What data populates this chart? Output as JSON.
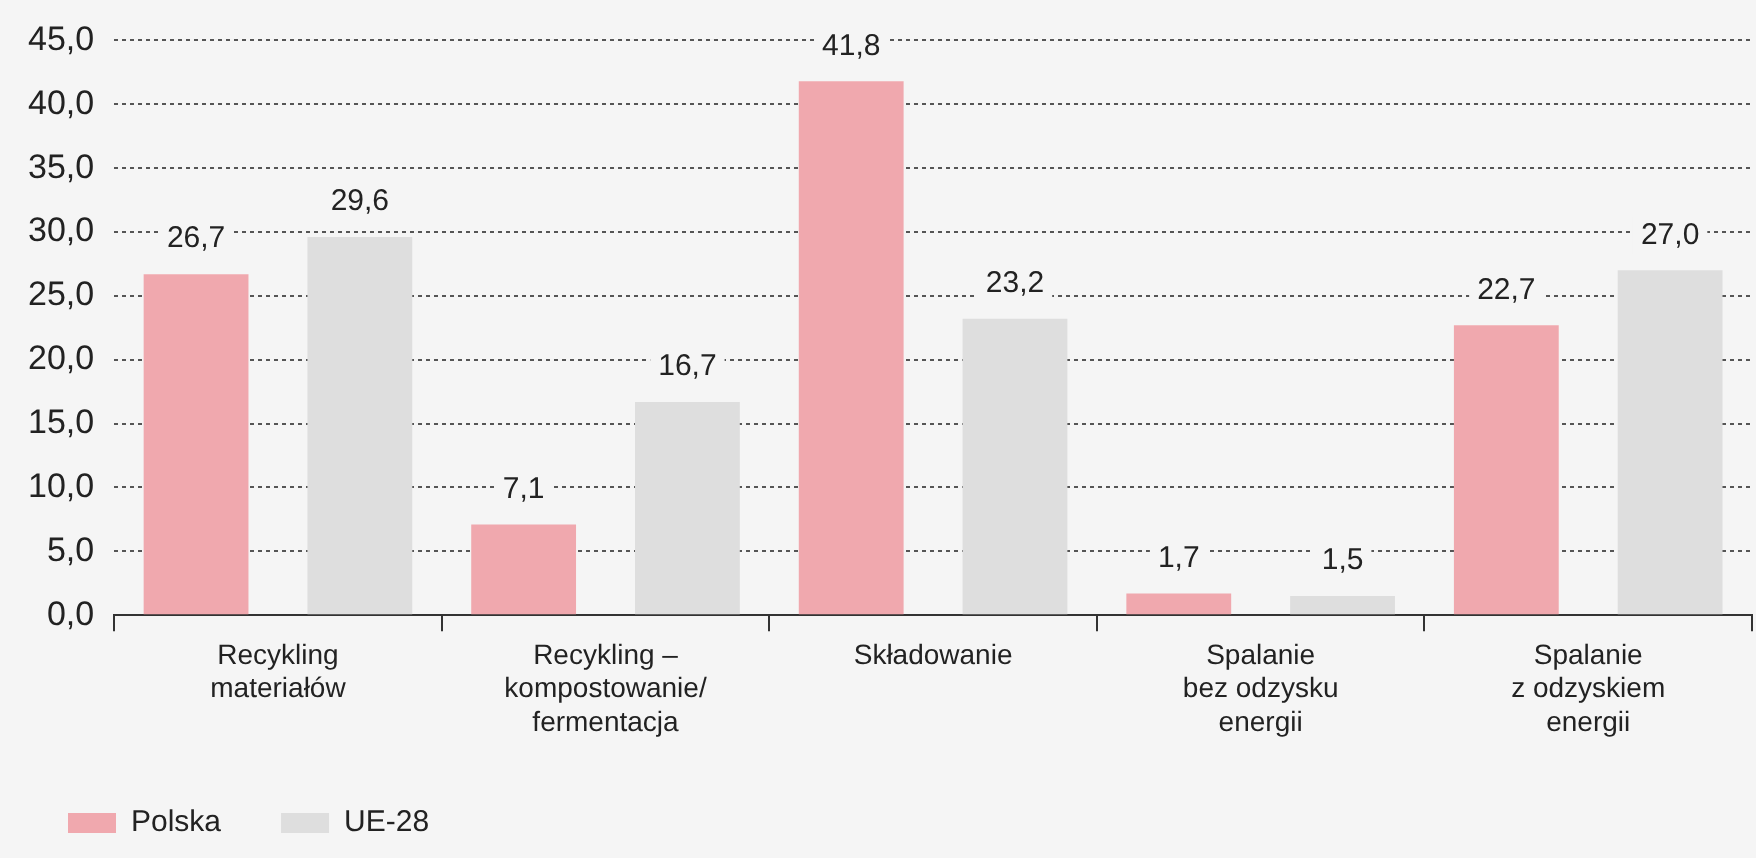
{
  "chart_data": {
    "type": "bar",
    "categories": [
      "Recykling\nmateriałów",
      "Recykling –\nkompostowanie/\nfermentacja",
      "Składowanie",
      "Spalanie\nbez odzysku\nenergii",
      "Spalanie\nz odzyskiem\nenergii"
    ],
    "series": [
      {
        "name": "Polska",
        "color": "#f0a8ae",
        "values": [
          26.7,
          7.1,
          41.8,
          1.7,
          22.7
        ],
        "value_labels": [
          "26,7",
          "7,1",
          "41,8",
          "1,7",
          "22,7"
        ]
      },
      {
        "name": "UE-28",
        "color": "#dedede",
        "values": [
          29.6,
          16.7,
          23.2,
          1.5,
          27.0
        ],
        "value_labels": [
          "29,6",
          "16,7",
          "23,2",
          "1,5",
          "27,0"
        ]
      }
    ],
    "ylim": [
      0,
      45
    ],
    "yticks": [
      {
        "value": 0,
        "label": "0,0"
      },
      {
        "value": 5,
        "label": "5,0"
      },
      {
        "value": 10,
        "label": "10,0"
      },
      {
        "value": 15,
        "label": "15,0"
      },
      {
        "value": 20,
        "label": "20,0"
      },
      {
        "value": 25,
        "label": "25,0"
      },
      {
        "value": 30,
        "label": "30,0"
      },
      {
        "value": 35,
        "label": "35,0"
      },
      {
        "value": 40,
        "label": "40,0"
      },
      {
        "value": 45,
        "label": "45,0"
      }
    ],
    "grid": "y",
    "legend": "bottom left"
  }
}
